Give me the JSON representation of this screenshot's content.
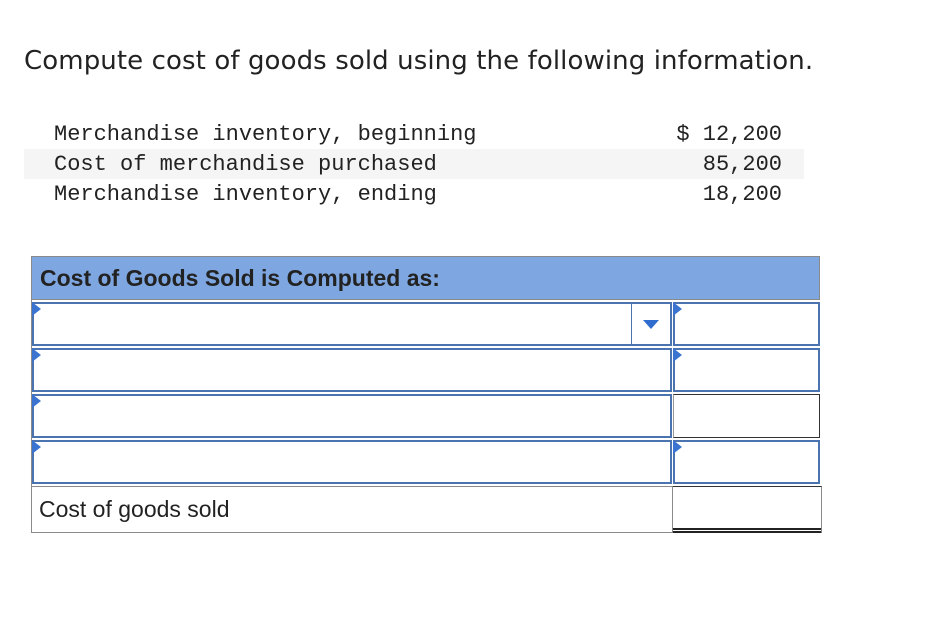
{
  "question": "Compute cost of goods sold using the following information.",
  "info": {
    "rows": [
      {
        "label": "Merchandise inventory, beginning",
        "value": "$ 12,200"
      },
      {
        "label": "Cost of merchandise purchased",
        "value": "85,200"
      },
      {
        "label": "Merchandise inventory, ending",
        "value": "18,200"
      }
    ]
  },
  "cogs_table": {
    "header": "Cost of Goods Sold is Computed as:",
    "rows": [
      {
        "label_value": "",
        "amount_value": ""
      },
      {
        "label_value": "",
        "amount_value": ""
      },
      {
        "label_value": "",
        "amount_value": ""
      },
      {
        "label_value": "",
        "amount_value": ""
      }
    ],
    "total_label": "Cost of goods sold",
    "total_value": ""
  },
  "colors": {
    "header_bg": "#7ea6e0",
    "input_border": "#4a73b0",
    "flag": "#3b74d0",
    "row_shade": "#f5f5f5"
  },
  "icons": {
    "dropdown": "chevron-down-icon",
    "input_marker": "triangle-flag-icon"
  }
}
